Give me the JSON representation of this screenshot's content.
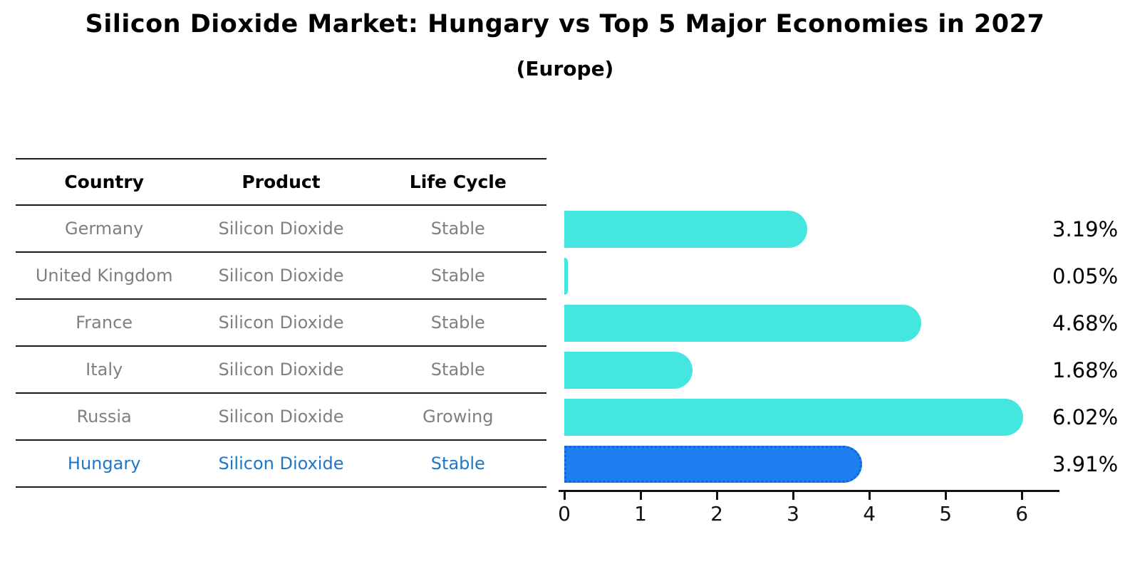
{
  "title": "Silicon Dioxide Market: Hungary vs Top 5 Major Economies in 2027",
  "subtitle": "(Europe)",
  "table": {
    "headers": [
      "Country",
      "Product",
      "Life Cycle"
    ],
    "rows": [
      {
        "country": "Germany",
        "product": "Silicon Dioxide",
        "life_cycle": "Stable"
      },
      {
        "country": "United Kingdom",
        "product": "Silicon Dioxide",
        "life_cycle": "Stable"
      },
      {
        "country": "France",
        "product": "Silicon Dioxide",
        "life_cycle": "Stable"
      },
      {
        "country": "Italy",
        "product": "Silicon Dioxide",
        "life_cycle": "Stable"
      },
      {
        "country": "Russia",
        "product": "Silicon Dioxide",
        "life_cycle": "Growing"
      },
      {
        "country": "Hungary",
        "product": "Silicon Dioxide",
        "life_cycle": "Stable"
      }
    ],
    "highlighted_row": "Hungary"
  },
  "chart_data": {
    "type": "bar",
    "orientation": "horizontal",
    "title": "Silicon Dioxide Market: Hungary vs Top 5 Major Economies in 2027",
    "subtitle": "(Europe)",
    "categories": [
      "Germany",
      "United Kingdom",
      "France",
      "Italy",
      "Russia",
      "Hungary"
    ],
    "values": [
      3.19,
      0.05,
      4.68,
      1.68,
      6.02,
      3.91
    ],
    "value_labels": [
      "3.19%",
      "0.05%",
      "4.68%",
      "1.68%",
      "6.02%",
      "3.91%"
    ],
    "xlabel": "",
    "ylabel": "",
    "xticks": [
      0,
      1,
      2,
      3,
      4,
      5,
      6
    ],
    "xlim": [
      0,
      6.4
    ],
    "grid": false,
    "legend": false,
    "bar_color": "#45E5E0",
    "highlight_bar_color": "#1E80F0",
    "highlight_bar_border": "#1463D8",
    "highlight_index": 5
  },
  "colors": {
    "background": "#FFFFFF",
    "table_text": "#7F7F7F",
    "header_text": "#000000",
    "highlight_text": "#1F77C8",
    "value_label_text": "#000000",
    "axis": "#111111"
  }
}
